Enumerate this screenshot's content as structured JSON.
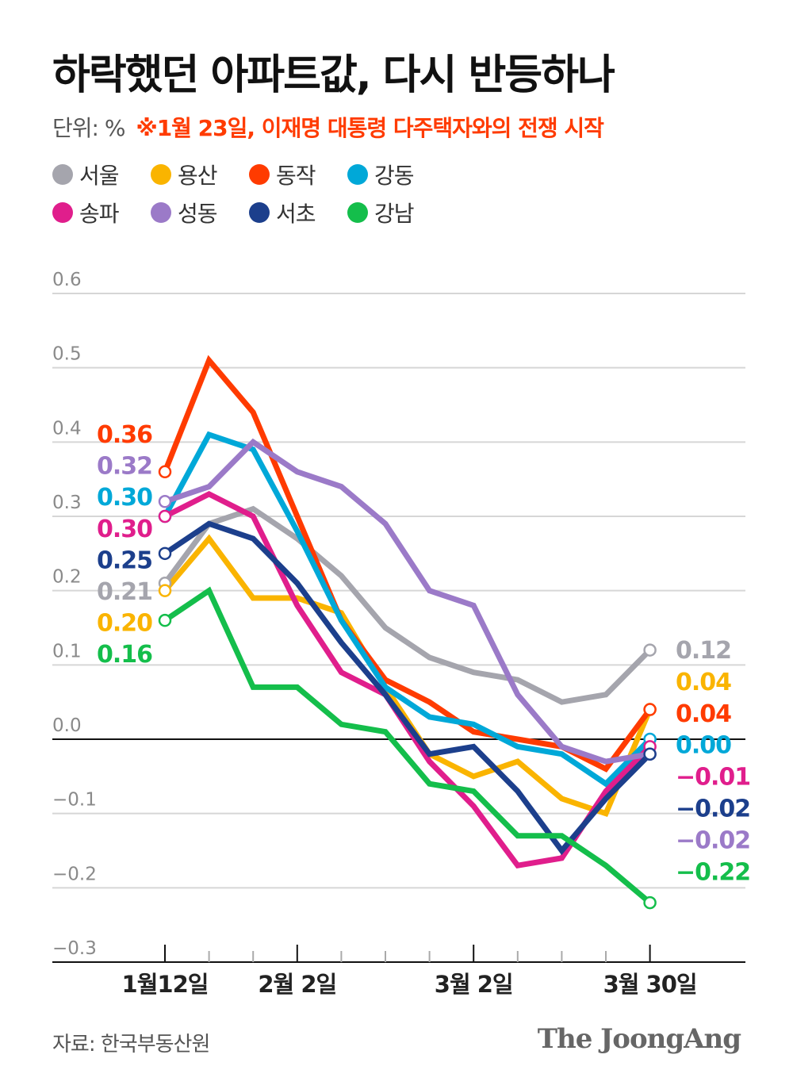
{
  "title": "하락했던 아파트값, 다시 반등하나",
  "unit": "단위: %",
  "note": "※1월 23일, 이재명 대통령 다주택자와의 전쟁 시작",
  "source": "자료: 한국부동산원",
  "brand": "The JoongAng",
  "chart_data": {
    "type": "line",
    "ylim": [
      -0.3,
      0.6
    ],
    "yticks": [
      "0.6",
      "0.5",
      "0.4",
      "0.3",
      "0.2",
      "0.1",
      "0.0",
      "-0.1",
      "-0.2",
      "-0.3"
    ],
    "ytick_values": [
      0.6,
      0.5,
      0.4,
      0.3,
      0.2,
      0.1,
      0.0,
      -0.1,
      -0.2,
      -0.3
    ],
    "x_count": 12,
    "xtick_labels": [
      {
        "index": 0,
        "label": "1월12일"
      },
      {
        "index": 3,
        "label": "2월 2일"
      },
      {
        "index": 7,
        "label": "3월 2일"
      },
      {
        "index": 11,
        "label": "3월 30일"
      }
    ],
    "grid": true,
    "legend": "top-left",
    "series": [
      {
        "name": "서울",
        "color": "#a5a5ad",
        "values": [
          0.21,
          0.29,
          0.31,
          0.27,
          0.22,
          0.15,
          0.11,
          0.09,
          0.08,
          0.05,
          0.06,
          0.12
        ],
        "start_label": "0.21",
        "end_label": "0.12"
      },
      {
        "name": "용산",
        "color": "#fab400",
        "values": [
          0.2,
          0.27,
          0.19,
          0.19,
          0.17,
          0.07,
          -0.02,
          -0.05,
          -0.03,
          -0.08,
          -0.1,
          0.04
        ],
        "start_label": "0.20",
        "end_label": "0.04"
      },
      {
        "name": "동작",
        "color": "#ff3b00",
        "values": [
          0.36,
          0.51,
          0.44,
          0.3,
          0.16,
          0.08,
          0.05,
          0.01,
          0.0,
          -0.01,
          -0.04,
          0.04
        ],
        "start_label": "0.36",
        "end_label": "0.04"
      },
      {
        "name": "강동",
        "color": "#00a8d8",
        "values": [
          0.3,
          0.41,
          0.39,
          0.28,
          0.16,
          0.07,
          0.03,
          0.02,
          -0.01,
          -0.02,
          -0.06,
          0.0
        ],
        "start_label": "0.30",
        "end_label": "0.00"
      },
      {
        "name": "송파",
        "color": "#e01e8c",
        "values": [
          0.3,
          0.33,
          0.3,
          0.18,
          0.09,
          0.06,
          -0.03,
          -0.09,
          -0.17,
          -0.16,
          -0.07,
          -0.01
        ],
        "start_label": "0.30",
        "end_label": "-0.01"
      },
      {
        "name": "성동",
        "color": "#9b7ac8",
        "values": [
          0.32,
          0.34,
          0.4,
          0.36,
          0.34,
          0.29,
          0.2,
          0.18,
          0.06,
          -0.01,
          -0.03,
          -0.02
        ],
        "start_label": "0.32",
        "end_label": "-0.02"
      },
      {
        "name": "서초",
        "color": "#1c3f8c",
        "values": [
          0.25,
          0.29,
          0.27,
          0.21,
          0.13,
          0.06,
          -0.02,
          -0.01,
          -0.07,
          -0.15,
          -0.08,
          -0.02
        ],
        "start_label": "0.25",
        "end_label": "-0.02"
      },
      {
        "name": "강남",
        "color": "#14be4b",
        "values": [
          0.16,
          0.2,
          0.07,
          0.07,
          0.02,
          0.01,
          -0.06,
          -0.07,
          -0.13,
          -0.13,
          -0.17,
          -0.22
        ],
        "start_label": "0.16",
        "end_label": "-0.22"
      }
    ]
  }
}
